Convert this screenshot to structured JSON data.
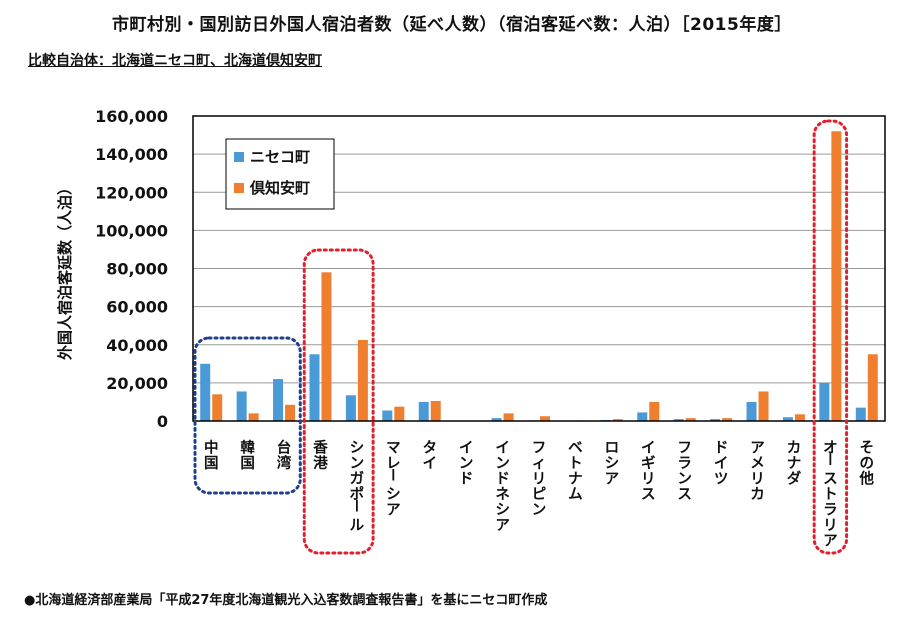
{
  "header": {
    "title": "市町村別・国別訪日外国人宿泊者数（延べ人数）（宿泊客延べ数：人泊）［2015年度］",
    "subtitle": "比較自治体：北海道ニセコ町、北海道倶知安町"
  },
  "footer": {
    "source_note": "●北海道経済部産業局「平成27年度北海道観光入込客数調査報告書」を基にニセコ町作成"
  },
  "colors": {
    "niseko": "#4a9ad8",
    "kutchan": "#ef7f2f",
    "highlight_blue": "#1f3f8f",
    "highlight_red": "#e0202c",
    "grid": "#9a9a9a"
  },
  "chart_data": {
    "type": "bar",
    "ylabel": "外国人宿泊客延数（人泊）",
    "xlabel": "",
    "ylim": [
      0,
      160000
    ],
    "yticks": [
      0,
      20000,
      40000,
      60000,
      80000,
      100000,
      120000,
      140000,
      160000
    ],
    "ytick_labels": [
      "0",
      "20,000",
      "40,000",
      "60,000",
      "80,000",
      "100,000",
      "120,000",
      "140,000",
      "160,000"
    ],
    "grid": true,
    "legend_position": "top-left",
    "categories": [
      "中国",
      "韓国",
      "台湾",
      "香港",
      "シンガポール",
      "マレーシア",
      "タイ",
      "インド",
      "インドネシア",
      "フィリピン",
      "ベトナム",
      "ロシア",
      "イギリス",
      "フランス",
      "ドイツ",
      "アメリカ",
      "カナダ",
      "オーストラリア",
      "その他"
    ],
    "series": [
      {
        "name": "ニセコ町",
        "values": [
          30000,
          15500,
          22000,
          35000,
          13500,
          5500,
          10000,
          200,
          1500,
          300,
          200,
          500,
          4500,
          1000,
          1000,
          10000,
          2000,
          20000,
          7000
        ]
      },
      {
        "name": "倶知安町",
        "values": [
          14000,
          4000,
          8500,
          78000,
          42500,
          7500,
          10500,
          200,
          4000,
          2500,
          300,
          1000,
          10000,
          1500,
          1500,
          15500,
          3500,
          152000,
          35000
        ]
      }
    ],
    "highlight_groups": [
      {
        "style": "blue",
        "from": 0,
        "to": 2
      },
      {
        "style": "red",
        "from": 3,
        "to": 4
      },
      {
        "style": "red",
        "from": 17,
        "to": 17
      }
    ]
  }
}
